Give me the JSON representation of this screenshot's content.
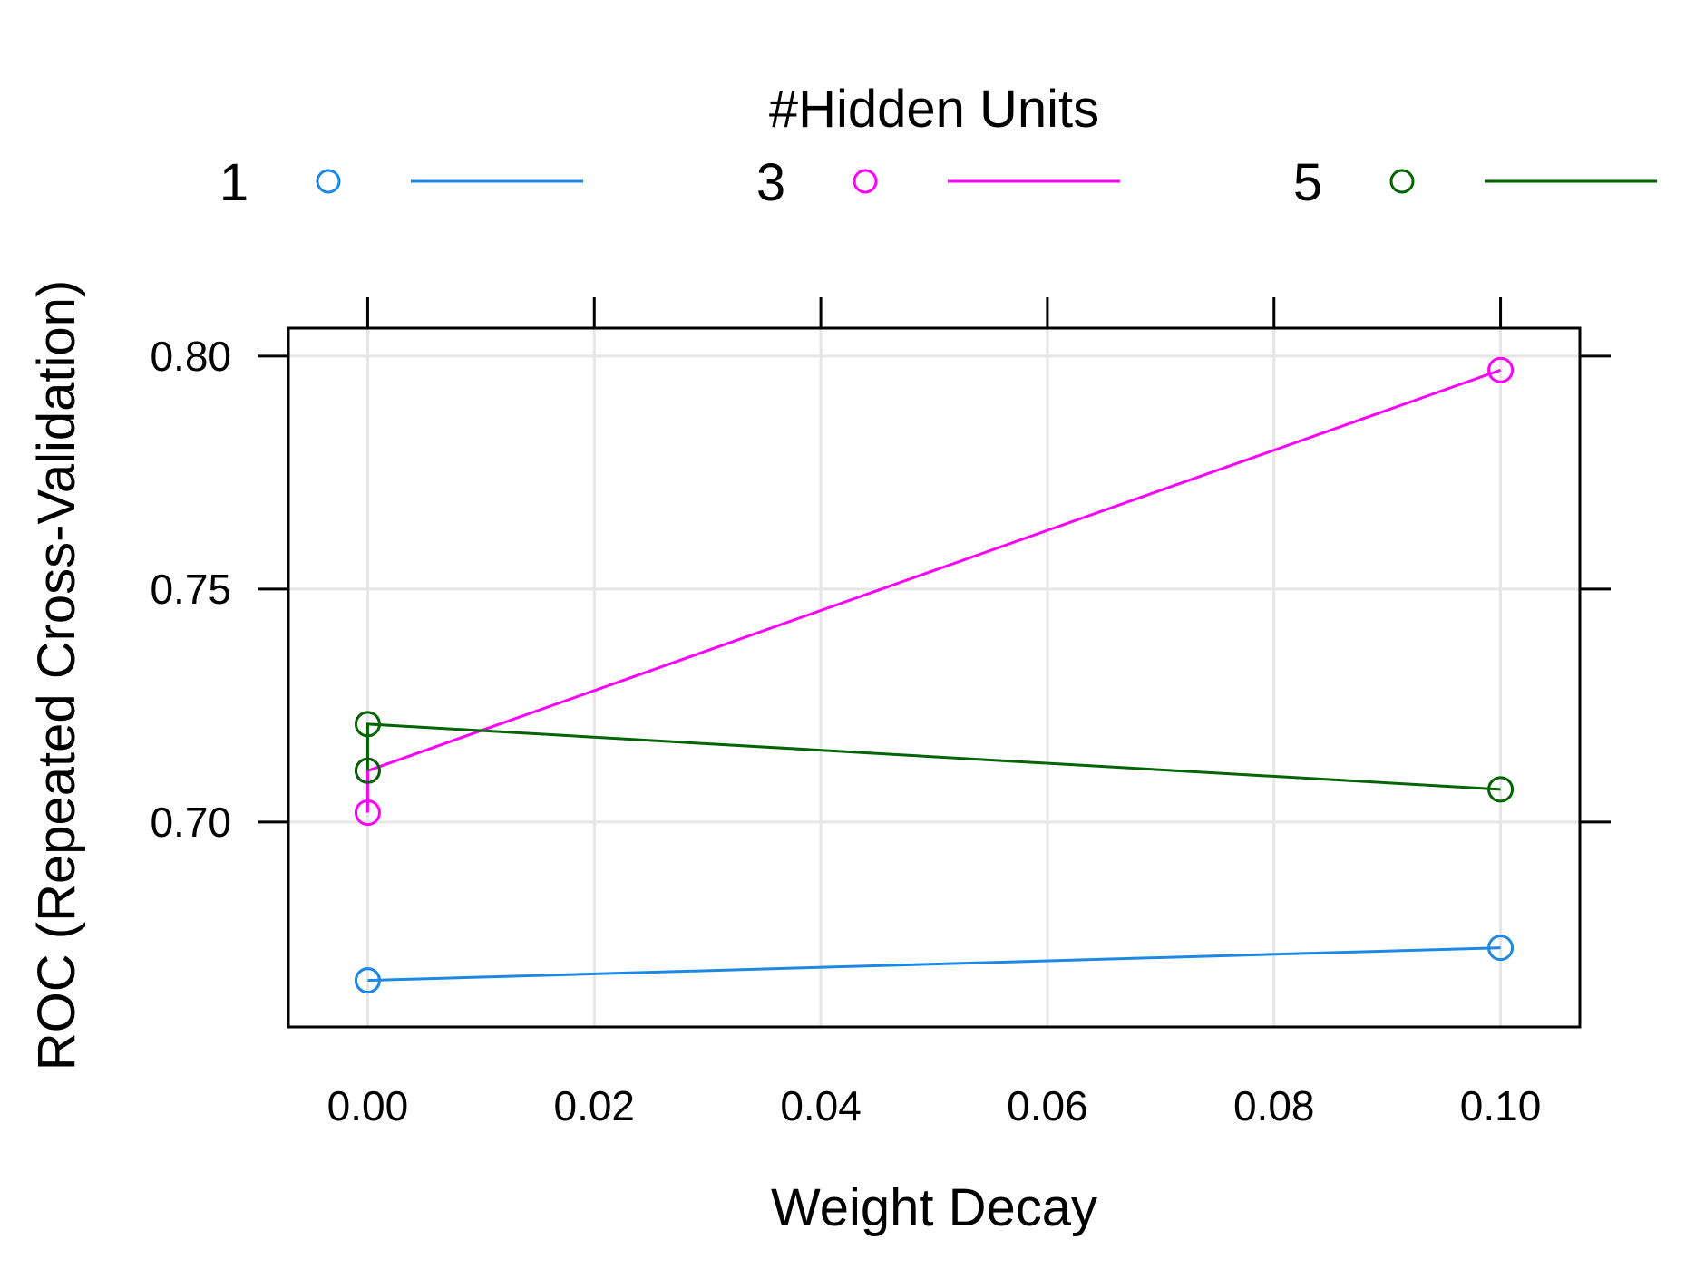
{
  "chart_data": {
    "type": "line",
    "xlabel": "Weight Decay",
    "ylabel": "ROC (Repeated Cross-Validation)",
    "legend_title": "#Hidden Units",
    "legend_placement": "top",
    "grid": true,
    "xlim": [
      -0.007,
      0.107
    ],
    "ylim": [
      0.656,
      0.806
    ],
    "x_ticks": [
      0.0,
      0.02,
      0.04,
      0.06,
      0.08,
      0.1
    ],
    "x_tick_labels": [
      "0.00",
      "0.02",
      "0.04",
      "0.06",
      "0.08",
      "0.10"
    ],
    "y_ticks": [
      0.7,
      0.75,
      0.8
    ],
    "y_tick_labels": [
      "0.70",
      "0.75",
      "0.80"
    ],
    "series": [
      {
        "name": "1",
        "color": "#1E88E5",
        "x": [
          0.0,
          0.0,
          0.1
        ],
        "y": [
          0.666,
          0.666,
          0.673
        ]
      },
      {
        "name": "3",
        "color": "#FF00FF",
        "x": [
          0.0,
          0.0,
          0.1
        ],
        "y": [
          0.702,
          0.711,
          0.797
        ]
      },
      {
        "name": "5",
        "color": "#006400",
        "x": [
          0.0,
          0.0,
          0.1
        ],
        "y": [
          0.711,
          0.721,
          0.707
        ]
      }
    ]
  }
}
